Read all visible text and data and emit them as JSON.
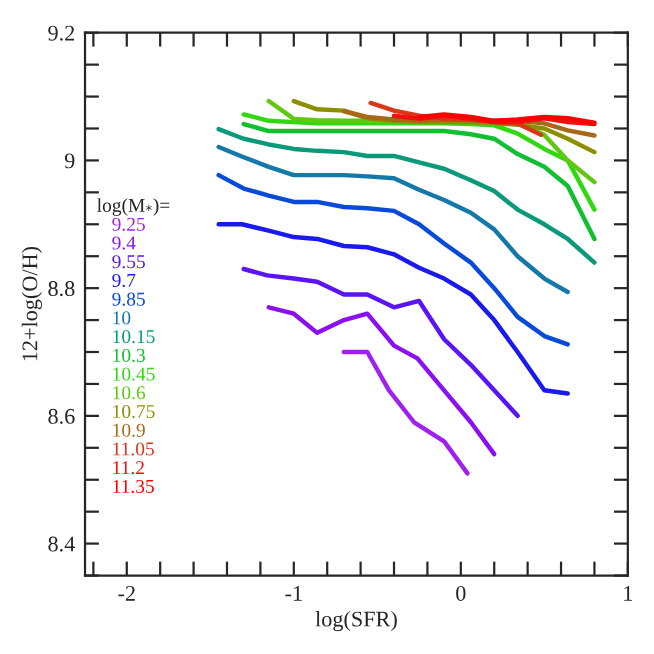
{
  "chart_data": {
    "type": "line",
    "xlabel": "log(SFR)",
    "ylabel": "12+log(O/H)",
    "legend_title": "log(M$_{*}$)=",
    "legend": "left",
    "marker": "none",
    "line_style": "solid",
    "grid": false,
    "xlim": [
      -2.25,
      1
    ],
    "ylim": [
      8.35,
      9.2
    ],
    "xticks": [
      {
        "value": -2.2,
        "label": null
      },
      -2,
      {
        "value": -1.8,
        "label": null
      },
      {
        "value": -1.6,
        "label": null
      },
      {
        "value": -1.4,
        "label": null
      },
      {
        "value": -1.2,
        "label": null
      },
      -1,
      {
        "value": -0.8,
        "label": null
      },
      {
        "value": -0.6,
        "label": null
      },
      {
        "value": -0.4,
        "label": null
      },
      {
        "value": -0.2,
        "label": null
      },
      0,
      {
        "value": 0.2,
        "label": null
      },
      {
        "value": 0.4,
        "label": null
      },
      {
        "value": 0.6,
        "label": null
      },
      {
        "value": 0.8,
        "label": null
      },
      1
    ],
    "yticks": [
      {
        "value": 8.35,
        "label": null
      },
      8.4,
      {
        "value": 8.45,
        "label": null
      },
      {
        "value": 8.5,
        "label": null
      },
      {
        "value": 8.55,
        "label": null
      },
      8.6,
      {
        "value": 8.65,
        "label": null
      },
      {
        "value": 8.7,
        "label": null
      },
      {
        "value": 8.75,
        "label": null
      },
      8.8,
      {
        "value": 8.85,
        "label": null
      },
      {
        "value": 8.9,
        "label": null
      },
      {
        "value": 8.95,
        "label": null
      },
      9,
      {
        "value": 9.05,
        "label": null
      },
      {
        "value": 9.1,
        "label": null
      },
      {
        "value": 9.15,
        "label": null
      },
      9.2
    ],
    "series": [
      {
        "name": "9.25",
        "color": "#a020f0",
        "x": [
          -0.7,
          -0.56,
          -0.43,
          -0.28,
          -0.1,
          0.04
        ],
        "values": [
          8.7,
          8.7,
          8.64,
          8.59,
          8.56,
          8.51
        ]
      },
      {
        "name": "9.4",
        "color": "#8a10f0",
        "x": [
          -1.15,
          -1.0,
          -0.86,
          -0.7,
          -0.56,
          -0.4,
          -0.26,
          -0.1,
          0.06,
          0.2
        ],
        "values": [
          8.77,
          8.76,
          8.73,
          8.75,
          8.76,
          8.71,
          8.69,
          8.64,
          8.59,
          8.54
        ]
      },
      {
        "name": "9.55",
        "color": "#5a14f5",
        "x": [
          -1.3,
          -1.16,
          -1.0,
          -0.86,
          -0.7,
          -0.56,
          -0.4,
          -0.25,
          -0.1,
          0.06,
          0.2,
          0.34
        ],
        "values": [
          8.83,
          8.82,
          8.815,
          8.81,
          8.79,
          8.79,
          8.77,
          8.78,
          8.72,
          8.68,
          8.64,
          8.6
        ]
      },
      {
        "name": "9.7",
        "color": "#1a1aee",
        "x": [
          -1.45,
          -1.31,
          -1.15,
          -1.0,
          -0.86,
          -0.7,
          -0.56,
          -0.4,
          -0.25,
          -0.1,
          0.06,
          0.2,
          0.34,
          0.5,
          0.64
        ],
        "values": [
          8.9,
          8.9,
          8.89,
          8.88,
          8.877,
          8.866,
          8.864,
          8.853,
          8.832,
          8.815,
          8.79,
          8.75,
          8.7,
          8.64,
          8.635
        ]
      },
      {
        "name": "9.85",
        "color": "#0a4ad8",
        "x": [
          -1.45,
          -1.3,
          -1.15,
          -1.0,
          -0.86,
          -0.7,
          -0.56,
          -0.4,
          -0.25,
          -0.1,
          0.06,
          0.2,
          0.34,
          0.5,
          0.64
        ],
        "values": [
          8.977,
          8.956,
          8.945,
          8.935,
          8.935,
          8.927,
          8.925,
          8.921,
          8.9,
          8.87,
          8.84,
          8.8,
          8.755,
          8.725,
          8.712
        ]
      },
      {
        "name": "10",
        "color": "#1478a8",
        "x": [
          -1.45,
          -1.3,
          -1.15,
          -1.0,
          -0.86,
          -0.7,
          -0.56,
          -0.4,
          -0.25,
          -0.1,
          0.06,
          0.2,
          0.34,
          0.5,
          0.64
        ],
        "values": [
          9.021,
          9.005,
          8.99,
          8.977,
          8.977,
          8.977,
          8.975,
          8.972,
          8.954,
          8.938,
          8.918,
          8.892,
          8.85,
          8.815,
          8.794
        ]
      },
      {
        "name": "10.15",
        "color": "#0a9a7a",
        "x": [
          -1.45,
          -1.3,
          -1.15,
          -1.0,
          -0.86,
          -0.7,
          -0.56,
          -0.4,
          -0.25,
          -0.1,
          0.06,
          0.2,
          0.34,
          0.5,
          0.64,
          0.8
        ],
        "values": [
          9.049,
          9.034,
          9.025,
          9.018,
          9.015,
          9.013,
          9.007,
          9.007,
          8.997,
          8.987,
          8.969,
          8.952,
          8.923,
          8.9,
          8.877,
          8.84
        ]
      },
      {
        "name": "10.3",
        "color": "#10c030",
        "x": [
          -1.3,
          -1.15,
          -1.0,
          -0.86,
          -0.7,
          -0.56,
          -0.4,
          -0.25,
          -0.1,
          0.06,
          0.2,
          0.34,
          0.5,
          0.64,
          0.8
        ],
        "values": [
          9.057,
          9.046,
          9.046,
          9.046,
          9.046,
          9.046,
          9.046,
          9.046,
          9.046,
          9.041,
          9.034,
          9.01,
          8.99,
          8.96,
          8.877
        ]
      },
      {
        "name": "10.45",
        "color": "#30d810",
        "x": [
          -1.3,
          -1.15,
          -1.0,
          -0.86,
          -0.7,
          -0.56,
          -0.4,
          -0.25,
          -0.1,
          0.06,
          0.2,
          0.34,
          0.5,
          0.64,
          0.8
        ],
        "values": [
          9.072,
          9.062,
          9.06,
          9.058,
          9.058,
          9.058,
          9.058,
          9.058,
          9.058,
          9.057,
          9.055,
          9.042,
          9.018,
          9.0,
          8.923
        ]
      },
      {
        "name": "10.6",
        "color": "#60c810",
        "x": [
          -1.15,
          -1.0,
          -0.86,
          -0.7,
          -0.56,
          -0.4,
          -0.25,
          -0.1,
          0.06,
          0.2,
          0.34,
          0.5,
          0.64,
          0.8
        ],
        "values": [
          9.093,
          9.065,
          9.063,
          9.062,
          9.062,
          9.062,
          9.062,
          9.062,
          9.062,
          9.06,
          9.058,
          9.04,
          9.0,
          8.966
        ]
      },
      {
        "name": "10.75",
        "color": "#8c9000",
        "x": [
          -1.0,
          -0.86,
          -0.7,
          -0.56,
          -0.4,
          -0.25,
          -0.1,
          0.06,
          0.2,
          0.34,
          0.5,
          0.64,
          0.8
        ],
        "values": [
          9.093,
          9.08,
          9.078,
          9.066,
          9.062,
          9.06,
          9.06,
          9.06,
          9.058,
          9.056,
          9.05,
          9.034,
          9.013
        ]
      },
      {
        "name": "10.9",
        "color": "#a86818",
        "x": [
          -0.7,
          -0.56,
          -0.4,
          -0.25,
          -0.1,
          0.06,
          0.2,
          0.34,
          0.5,
          0.64,
          0.8
        ],
        "values": [
          9.077,
          9.068,
          9.064,
          9.062,
          9.064,
          9.063,
          9.062,
          9.062,
          9.058,
          9.047,
          9.039
        ]
      },
      {
        "name": "11.05",
        "color": "#d83818",
        "x": [
          -0.54,
          -0.4,
          -0.25,
          -0.1,
          0.06,
          0.2,
          0.34,
          0.48
        ],
        "values": [
          9.09,
          9.078,
          9.07,
          9.065,
          9.064,
          9.06,
          9.058,
          9.04
        ]
      },
      {
        "name": "11.2",
        "color": "#f01010",
        "x": [
          -0.4,
          -0.25,
          -0.1,
          0.06,
          0.2,
          0.34,
          0.5,
          0.64,
          0.8
        ],
        "values": [
          9.07,
          9.065,
          9.07,
          9.065,
          9.06,
          9.06,
          9.066,
          9.06,
          9.057
        ]
      },
      {
        "name": "11.35",
        "color": "#ff0000",
        "x": [
          -0.25,
          -0.1,
          0.06,
          0.2,
          0.34,
          0.5,
          0.64,
          0.8
        ],
        "values": [
          9.068,
          9.072,
          9.068,
          9.062,
          9.064,
          9.068,
          9.066,
          9.059
        ]
      }
    ]
  }
}
